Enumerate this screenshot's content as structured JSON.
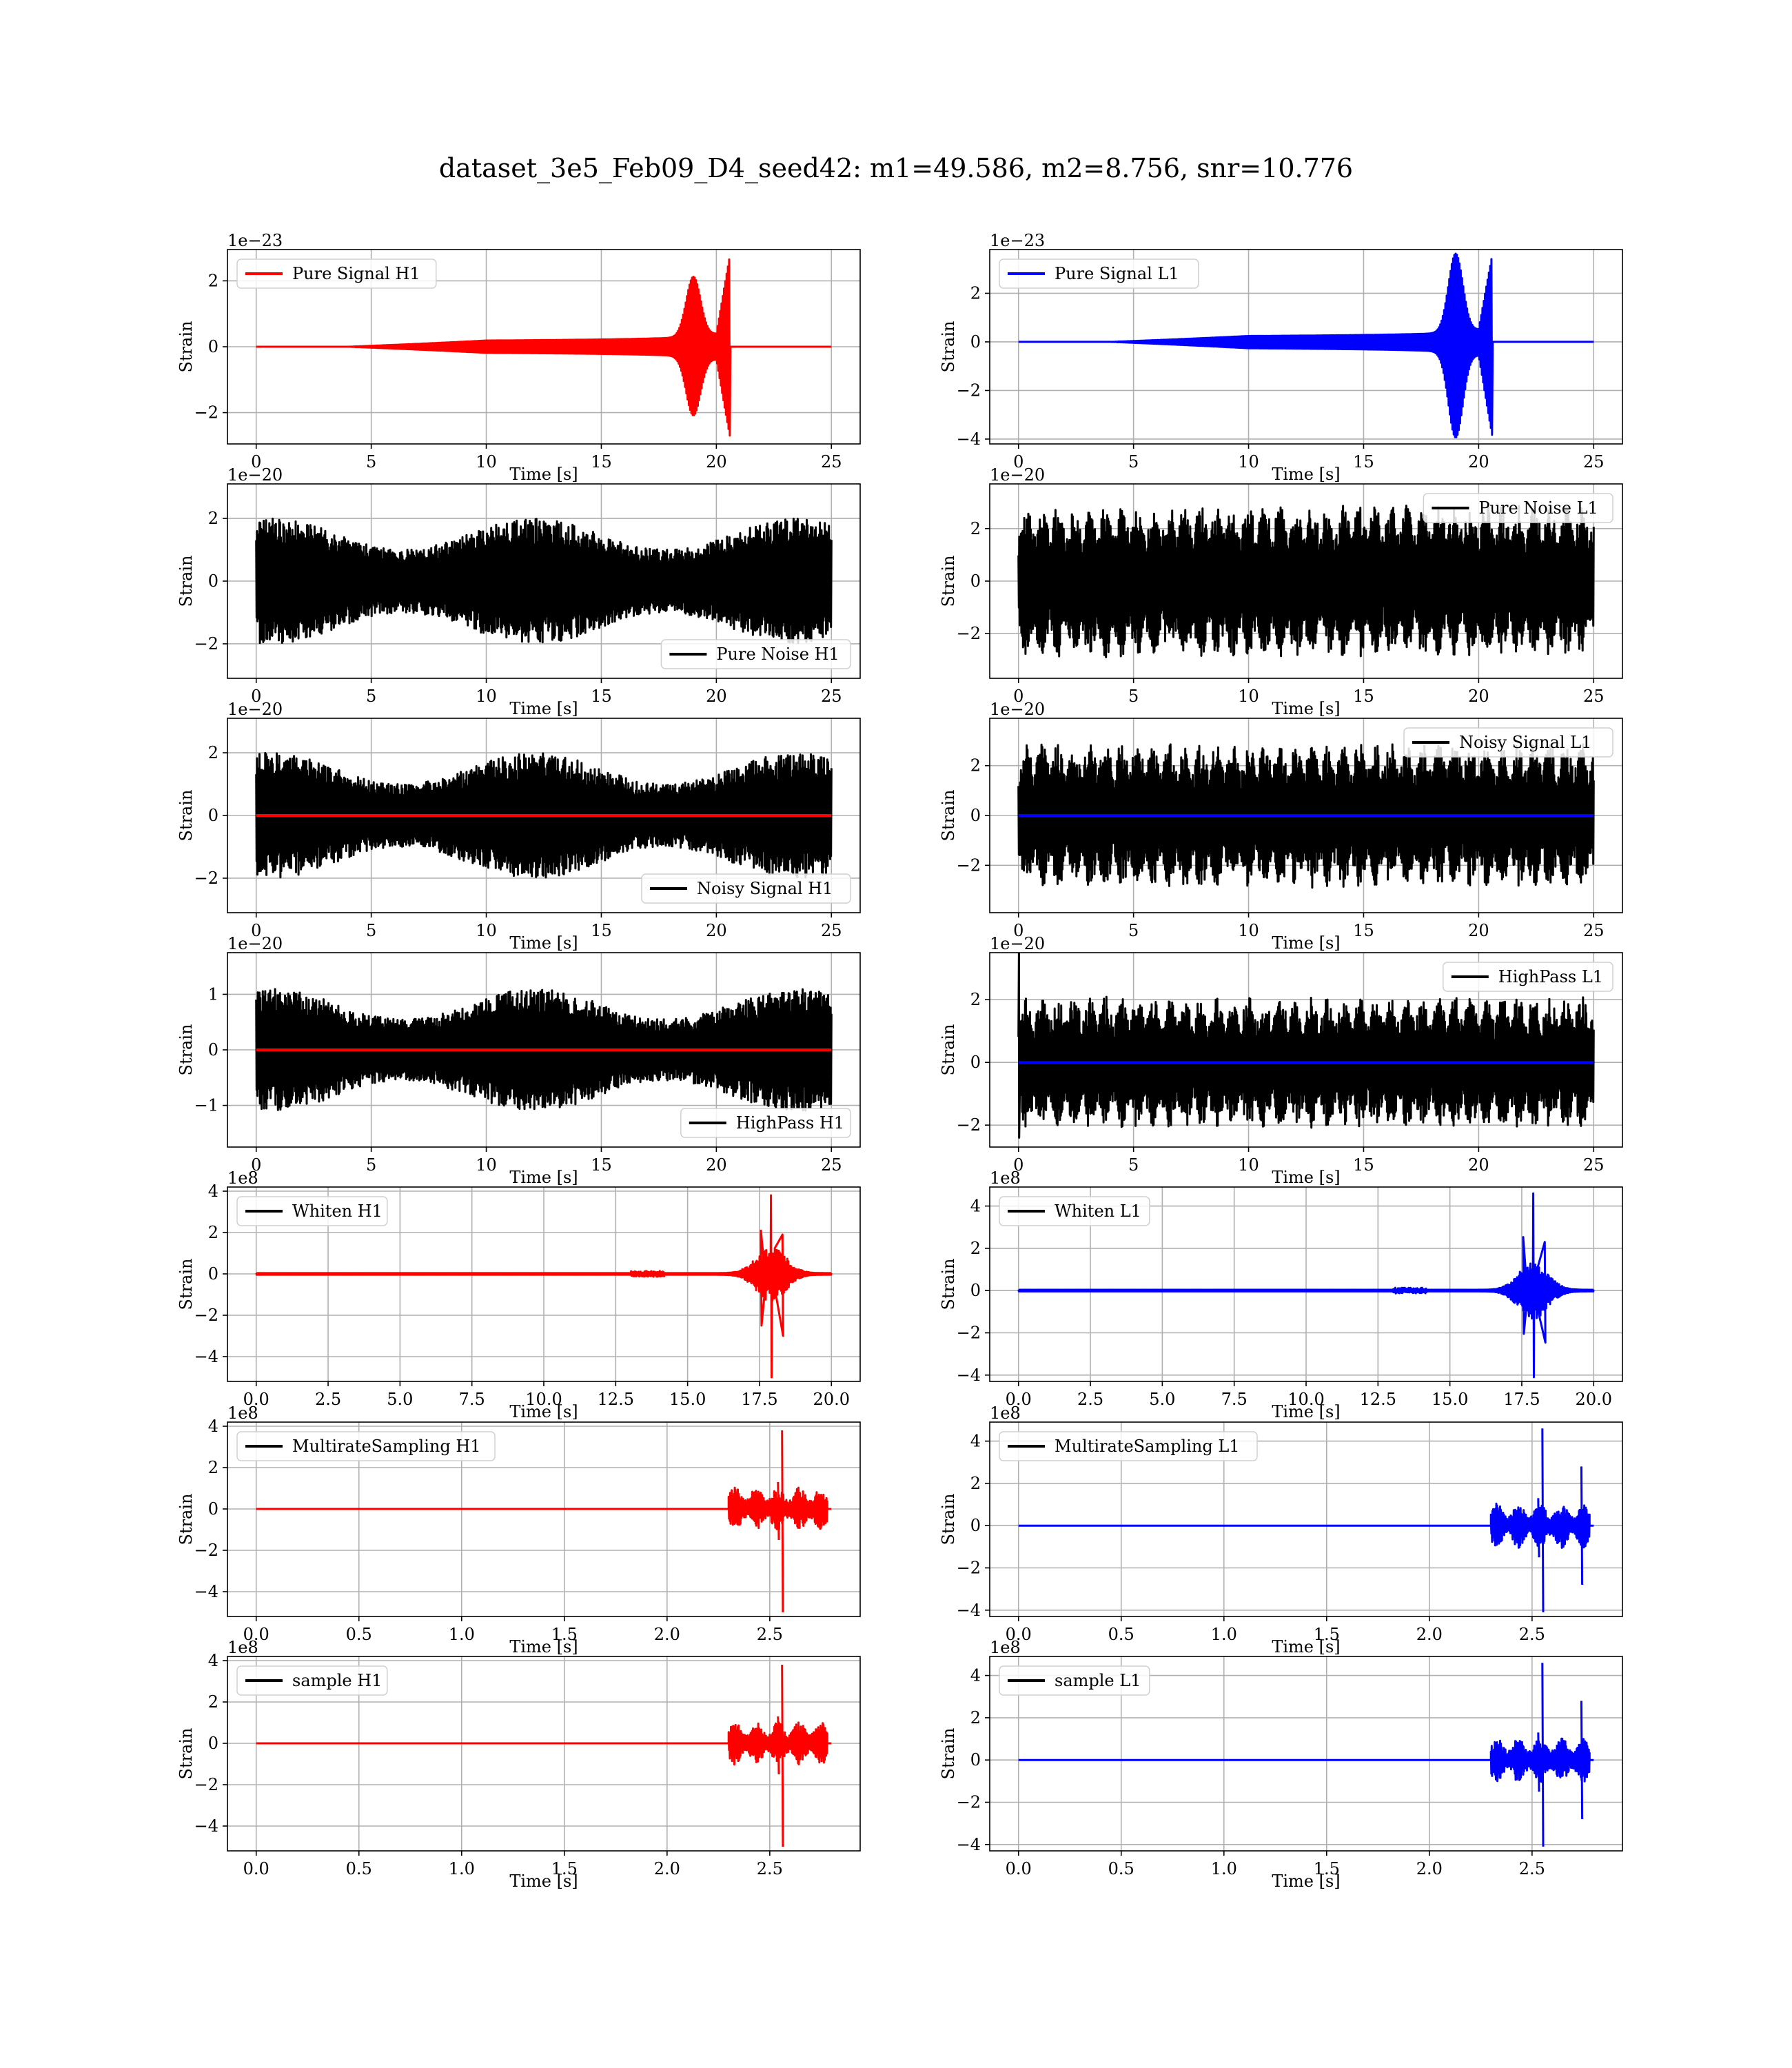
{
  "title": "dataset_3e5_Feb09_D4_seed42: m1=49.586, m2=8.756, snr=10.776",
  "colors": {
    "h1_signal": "#ff0000",
    "l1_signal": "#0000ff",
    "noise": "#000000",
    "grid": "#b0b0b0"
  },
  "chart_data": [
    {
      "id": "pure-signal-h1",
      "type": "line",
      "ylabel": "Strain",
      "xlabel": "Time [s]",
      "offset_text": "1e−23",
      "xlim": [
        -1.25,
        26.25
      ],
      "ylim": [
        -2.95,
        2.95
      ],
      "xticks": [
        0,
        5,
        10,
        15,
        20,
        25
      ],
      "xtick_labels": [
        "0",
        "5",
        "10",
        "15",
        "20",
        "25"
      ],
      "yticks": [
        -2,
        0,
        2
      ],
      "ytick_labels": [
        "−2",
        "0",
        "2"
      ],
      "legend": {
        "position": "upper-left",
        "entries": [
          {
            "label": "Pure Signal H1",
            "color": "#ff0000"
          }
        ]
      },
      "series": [
        {
          "name": "Pure Signal H1",
          "color": "#ff0000",
          "kind": "chirp",
          "x_start": 0,
          "x_end": 25,
          "t_start": 10,
          "t_merge": 20.6,
          "peak": 2.8,
          "neg_peak": -2.75,
          "bump_time": 19.0,
          "bump_amp": 0.65
        }
      ],
      "grid": true
    },
    {
      "id": "pure-signal-l1",
      "type": "line",
      "ylabel": "Strain",
      "xlabel": "Time [s]",
      "offset_text": "1e−23",
      "xlim": [
        -1.25,
        26.25
      ],
      "ylim": [
        -4.2,
        3.8
      ],
      "xticks": [
        0,
        5,
        10,
        15,
        20,
        25
      ],
      "xtick_labels": [
        "0",
        "5",
        "10",
        "15",
        "20",
        "25"
      ],
      "yticks": [
        -4,
        -2,
        0,
        2
      ],
      "ytick_labels": [
        "−4",
        "−2",
        "0",
        "2"
      ],
      "legend": {
        "position": "upper-left",
        "entries": [
          {
            "label": "Pure Signal L1",
            "color": "#0000ff"
          }
        ]
      },
      "series": [
        {
          "name": "Pure Signal L1",
          "color": "#0000ff",
          "kind": "chirp",
          "x_start": 0,
          "x_end": 25,
          "t_start": 10,
          "t_merge": 20.6,
          "peak": 3.6,
          "neg_peak": -3.9,
          "bump_time": 19.0,
          "bump_amp": 0.9
        }
      ],
      "grid": true
    },
    {
      "id": "pure-noise-h1",
      "type": "line",
      "ylabel": "Strain",
      "xlabel": "Time [s]",
      "offset_text": "1e−20",
      "xlim": [
        -1.25,
        26.25
      ],
      "ylim": [
        -3.1,
        3.1
      ],
      "xticks": [
        0,
        5,
        10,
        15,
        20,
        25
      ],
      "xtick_labels": [
        "0",
        "5",
        "10",
        "15",
        "20",
        "25"
      ],
      "yticks": [
        -2,
        0,
        2
      ],
      "ytick_labels": [
        "−2",
        "0",
        "2"
      ],
      "legend": {
        "position": "lower-right",
        "entries": [
          {
            "label": "Pure Noise H1",
            "color": "#000000"
          }
        ]
      },
      "series": [
        {
          "name": "Pure Noise H1",
          "color": "#000000",
          "kind": "noise",
          "x_start": 0,
          "x_end": 25,
          "amp": 2.0,
          "peak": 2.7,
          "trough": -2.9,
          "beat": false
        }
      ],
      "grid": true
    },
    {
      "id": "pure-noise-l1",
      "type": "line",
      "ylabel": "Strain",
      "xlabel": "Time [s]",
      "offset_text": "1e−20",
      "xlim": [
        -1.25,
        26.25
      ],
      "ylim": [
        -3.7,
        3.7
      ],
      "xticks": [
        0,
        5,
        10,
        15,
        20,
        25
      ],
      "xtick_labels": [
        "0",
        "5",
        "10",
        "15",
        "20",
        "25"
      ],
      "yticks": [
        -2,
        0,
        2
      ],
      "ytick_labels": [
        "−2",
        "0",
        "2"
      ],
      "legend": {
        "position": "upper-right",
        "entries": [
          {
            "label": "Pure Noise L1",
            "color": "#000000"
          }
        ]
      },
      "series": [
        {
          "name": "Pure Noise L1",
          "color": "#000000",
          "kind": "noise",
          "x_start": 0,
          "x_end": 25,
          "amp": 2.9,
          "peak": 3.5,
          "trough": -3.5,
          "beat": true
        }
      ],
      "grid": true
    },
    {
      "id": "noisy-signal-h1",
      "type": "line",
      "ylabel": "Strain",
      "xlabel": "Time [s]",
      "offset_text": "1e−20",
      "xlim": [
        -1.25,
        26.25
      ],
      "ylim": [
        -3.1,
        3.1
      ],
      "xticks": [
        0,
        5,
        10,
        15,
        20,
        25
      ],
      "xtick_labels": [
        "0",
        "5",
        "10",
        "15",
        "20",
        "25"
      ],
      "yticks": [
        -2,
        0,
        2
      ],
      "ytick_labels": [
        "−2",
        "0",
        "2"
      ],
      "legend": {
        "position": "lower-right",
        "entries": [
          {
            "label": "Noisy Signal H1",
            "color": "#000000"
          }
        ]
      },
      "series": [
        {
          "name": "Noisy Signal H1",
          "color": "#000000",
          "kind": "noise",
          "x_start": 0,
          "x_end": 25,
          "amp": 2.0,
          "peak": 2.7,
          "trough": -2.9,
          "beat": false
        },
        {
          "color": "#ff0000",
          "kind": "flat",
          "x_start": 0,
          "x_end": 25,
          "value": 0
        }
      ],
      "grid": true
    },
    {
      "id": "noisy-signal-l1",
      "type": "line",
      "ylabel": "Strain",
      "xlabel": "Time [s]",
      "offset_text": "1e−20",
      "xlim": [
        -1.25,
        26.25
      ],
      "ylim": [
        -3.9,
        3.9
      ],
      "xticks": [
        0,
        5,
        10,
        15,
        20,
        25
      ],
      "xtick_labels": [
        "0",
        "5",
        "10",
        "15",
        "20",
        "25"
      ],
      "yticks": [
        -2,
        0,
        2
      ],
      "ytick_labels": [
        "−2",
        "0",
        "2"
      ],
      "legend": {
        "position": "upper-right",
        "entries": [
          {
            "label": "Noisy Signal L1",
            "color": "#000000"
          }
        ]
      },
      "series": [
        {
          "name": "Noisy Signal L1",
          "color": "#000000",
          "kind": "noise",
          "x_start": 0,
          "x_end": 25,
          "amp": 2.9,
          "peak": 3.5,
          "trough": -3.5,
          "beat": true
        },
        {
          "color": "#0000ff",
          "kind": "flat",
          "x_start": 0,
          "x_end": 25,
          "value": 0
        }
      ],
      "grid": true
    },
    {
      "id": "highpass-h1",
      "type": "line",
      "ylabel": "Strain",
      "xlabel": "Time [s]",
      "offset_text": "1e−20",
      "xlim": [
        -1.25,
        26.25
      ],
      "ylim": [
        -1.75,
        1.75
      ],
      "xticks": [
        0,
        5,
        10,
        15,
        20,
        25
      ],
      "xtick_labels": [
        "0",
        "5",
        "10",
        "15",
        "20",
        "25"
      ],
      "yticks": [
        -1,
        0,
        1
      ],
      "ytick_labels": [
        "−1",
        "0",
        "1"
      ],
      "legend": {
        "position": "lower-right",
        "entries": [
          {
            "label": "HighPass H1",
            "color": "#000000"
          }
        ]
      },
      "series": [
        {
          "name": "HighPass H1",
          "color": "#000000",
          "kind": "noise",
          "x_start": 0,
          "x_end": 25,
          "amp": 1.1,
          "peak": 1.6,
          "trough": -1.6,
          "beat": false
        },
        {
          "color": "#ff0000",
          "kind": "flat",
          "x_start": 0,
          "x_end": 25,
          "value": 0
        }
      ],
      "grid": true
    },
    {
      "id": "highpass-l1",
      "type": "line",
      "ylabel": "Strain",
      "xlabel": "Time [s]",
      "offset_text": "1e−20",
      "xlim": [
        -1.25,
        26.25
      ],
      "ylim": [
        -2.7,
        3.5
      ],
      "xticks": [
        0,
        5,
        10,
        15,
        20,
        25
      ],
      "xtick_labels": [
        "0",
        "5",
        "10",
        "15",
        "20",
        "25"
      ],
      "yticks": [
        -2,
        0,
        2
      ],
      "ytick_labels": [
        "−2",
        "0",
        "2"
      ],
      "legend": {
        "position": "upper-right",
        "entries": [
          {
            "label": "HighPass L1",
            "color": "#000000"
          }
        ]
      },
      "series": [
        {
          "name": "HighPass L1",
          "color": "#000000",
          "kind": "noise",
          "x_start": 0,
          "x_end": 25,
          "amp": 2.1,
          "peak": 2.5,
          "trough": -2.4,
          "beat": true,
          "spike": 3.5
        },
        {
          "color": "#0000ff",
          "kind": "flat",
          "x_start": 0,
          "x_end": 25,
          "value": 0
        }
      ],
      "grid": true
    },
    {
      "id": "whiten-h1",
      "type": "line",
      "ylabel": "Strain",
      "xlabel": "Time [s]",
      "offset_text": "1e8",
      "xlim": [
        -1.0,
        21.0
      ],
      "ylim": [
        -5.2,
        4.2
      ],
      "xticks": [
        0,
        2.5,
        5,
        7.5,
        10,
        12.5,
        15,
        17.5,
        20
      ],
      "xtick_labels": [
        "0.0",
        "2.5",
        "5.0",
        "7.5",
        "10.0",
        "12.5",
        "15.0",
        "17.5",
        "20.0"
      ],
      "yticks": [
        -4,
        -2,
        0,
        2,
        4
      ],
      "ytick_labels": [
        "−4",
        "−2",
        "0",
        "2",
        "4"
      ],
      "legend": {
        "position": "upper-left",
        "entries": [
          {
            "label": "Whiten H1",
            "color": "#000000"
          }
        ]
      },
      "series": [
        {
          "name": "Whiten H1",
          "color": "#ff0000",
          "kind": "burst",
          "x_start": 0,
          "x_end": 20,
          "center": 17.9,
          "width": 1.3,
          "peak": 3.8,
          "trough": -5.0
        }
      ],
      "grid": true
    },
    {
      "id": "whiten-l1",
      "type": "line",
      "ylabel": "Strain",
      "xlabel": "Time [s]",
      "offset_text": "1e8",
      "xlim": [
        -1.0,
        21.0
      ],
      "ylim": [
        -4.3,
        4.9
      ],
      "xticks": [
        0,
        2.5,
        5,
        7.5,
        10,
        12.5,
        15,
        17.5,
        20
      ],
      "xtick_labels": [
        "0.0",
        "2.5",
        "5.0",
        "7.5",
        "10.0",
        "12.5",
        "15.0",
        "17.5",
        "20.0"
      ],
      "yticks": [
        -4,
        -2,
        0,
        2,
        4
      ],
      "ytick_labels": [
        "−4",
        "−2",
        "0",
        "2",
        "4"
      ],
      "legend": {
        "position": "upper-left",
        "entries": [
          {
            "label": "Whiten L1",
            "color": "#000000"
          }
        ]
      },
      "series": [
        {
          "name": "Whiten L1",
          "color": "#0000ff",
          "kind": "burst",
          "x_start": 0,
          "x_end": 20,
          "center": 17.9,
          "width": 1.3,
          "peak": 4.6,
          "trough": -4.1
        }
      ],
      "grid": true
    },
    {
      "id": "multirate-h1",
      "type": "line",
      "ylabel": "Strain",
      "xlabel": "Time [s]",
      "offset_text": "1e8",
      "xlim": [
        -0.14,
        2.94
      ],
      "ylim": [
        -5.2,
        4.2
      ],
      "xticks": [
        0,
        0.5,
        1,
        1.5,
        2,
        2.5
      ],
      "xtick_labels": [
        "0.0",
        "0.5",
        "1.0",
        "1.5",
        "2.0",
        "2.5"
      ],
      "yticks": [
        -4,
        -2,
        0,
        2,
        4
      ],
      "ytick_labels": [
        "−4",
        "−2",
        "0",
        "2",
        "4"
      ],
      "legend": {
        "position": "upper-left",
        "entries": [
          {
            "label": "MultirateSampling H1",
            "color": "#000000"
          }
        ]
      },
      "series": [
        {
          "name": "MultirateSampling H1",
          "color": "#ff0000",
          "kind": "segment",
          "x_start": 0,
          "x_end": 2.8,
          "seg_start": 2.3,
          "seg_end": 2.78,
          "spike_time": 2.56,
          "peak": 3.8,
          "trough": -5.0,
          "second_spike_time": null,
          "second_peak": 0,
          "second_trough": 0
        }
      ],
      "grid": true
    },
    {
      "id": "multirate-l1",
      "type": "line",
      "ylabel": "Strain",
      "xlabel": "Time [s]",
      "offset_text": "1e8",
      "xlim": [
        -0.14,
        2.94
      ],
      "ylim": [
        -4.3,
        4.9
      ],
      "xticks": [
        0,
        0.5,
        1,
        1.5,
        2,
        2.5
      ],
      "xtick_labels": [
        "0.0",
        "0.5",
        "1.0",
        "1.5",
        "2.0",
        "2.5"
      ],
      "yticks": [
        -4,
        -2,
        0,
        2,
        4
      ],
      "ytick_labels": [
        "−4",
        "−2",
        "0",
        "2",
        "4"
      ],
      "legend": {
        "position": "upper-left",
        "entries": [
          {
            "label": "MultirateSampling L1",
            "color": "#000000"
          }
        ]
      },
      "series": [
        {
          "name": "MultirateSampling L1",
          "color": "#0000ff",
          "kind": "segment",
          "x_start": 0,
          "x_end": 2.8,
          "seg_start": 2.3,
          "seg_end": 2.78,
          "spike_time": 2.55,
          "peak": 4.6,
          "trough": -4.1,
          "second_spike_time": 2.74,
          "second_peak": 2.8,
          "second_trough": -2.8
        }
      ],
      "grid": true
    },
    {
      "id": "sample-h1",
      "type": "line",
      "ylabel": "Strain",
      "xlabel": "Time [s]",
      "offset_text": "1e8",
      "xlim": [
        -0.14,
        2.94
      ],
      "ylim": [
        -5.2,
        4.2
      ],
      "xticks": [
        0,
        0.5,
        1,
        1.5,
        2,
        2.5
      ],
      "xtick_labels": [
        "0.0",
        "0.5",
        "1.0",
        "1.5",
        "2.0",
        "2.5"
      ],
      "yticks": [
        -4,
        -2,
        0,
        2,
        4
      ],
      "ytick_labels": [
        "−4",
        "−2",
        "0",
        "2",
        "4"
      ],
      "legend": {
        "position": "upper-left",
        "entries": [
          {
            "label": "sample H1",
            "color": "#000000"
          }
        ]
      },
      "series": [
        {
          "name": "sample H1",
          "color": "#ff0000",
          "kind": "segment",
          "x_start": 0,
          "x_end": 2.8,
          "seg_start": 2.3,
          "seg_end": 2.78,
          "spike_time": 2.56,
          "peak": 3.8,
          "trough": -5.0,
          "second_spike_time": null,
          "second_peak": 0,
          "second_trough": 0
        }
      ],
      "grid": true
    },
    {
      "id": "sample-l1",
      "type": "line",
      "ylabel": "Strain",
      "xlabel": "Time [s]",
      "offset_text": "1e8",
      "xlim": [
        -0.14,
        2.94
      ],
      "ylim": [
        -4.3,
        4.9
      ],
      "xticks": [
        0,
        0.5,
        1,
        1.5,
        2,
        2.5
      ],
      "xtick_labels": [
        "0.0",
        "0.5",
        "1.0",
        "1.5",
        "2.0",
        "2.5"
      ],
      "yticks": [
        -4,
        -2,
        0,
        2,
        4
      ],
      "ytick_labels": [
        "−4",
        "−2",
        "0",
        "2",
        "4"
      ],
      "legend": {
        "position": "upper-left",
        "entries": [
          {
            "label": "sample L1",
            "color": "#000000"
          }
        ]
      },
      "series": [
        {
          "name": "sample L1",
          "color": "#0000ff",
          "kind": "segment",
          "x_start": 0,
          "x_end": 2.8,
          "seg_start": 2.3,
          "seg_end": 2.78,
          "spike_time": 2.55,
          "peak": 4.6,
          "trough": -4.1,
          "second_spike_time": 2.74,
          "second_peak": 2.8,
          "second_trough": -2.8
        }
      ],
      "grid": true
    }
  ]
}
